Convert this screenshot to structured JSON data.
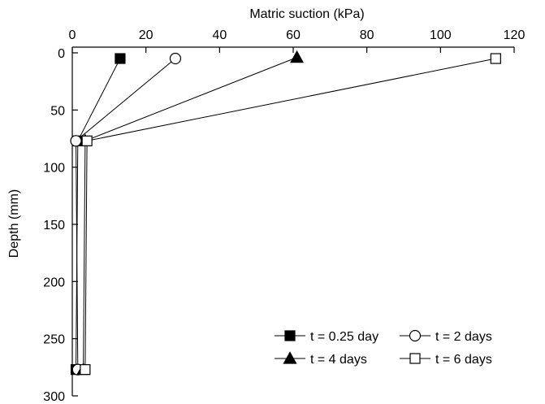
{
  "chart_data": {
    "type": "line",
    "xlabel": "Matric suction (kPa)",
    "ylabel": "Depth (mm)",
    "xaxis_position": "top",
    "yaxis_inverted": true,
    "xlim": [
      0,
      120
    ],
    "ylim": [
      0,
      300
    ],
    "x_ticks": [
      0,
      20,
      40,
      60,
      80,
      100,
      120
    ],
    "y_ticks": [
      0,
      50,
      100,
      150,
      200,
      250,
      300
    ],
    "grid": false,
    "legend_position": "bottom-right",
    "series": [
      {
        "name": "t = 0.25 day",
        "marker": "filled-square",
        "points": [
          {
            "x": 13,
            "y": 5
          },
          {
            "x": 1.5,
            "y": 77
          },
          {
            "x": 1,
            "y": 277
          }
        ]
      },
      {
        "name": "t = 2 days",
        "marker": "open-circle",
        "points": [
          {
            "x": 28,
            "y": 5
          },
          {
            "x": 1,
            "y": 77
          },
          {
            "x": 1.5,
            "y": 277
          }
        ]
      },
      {
        "name": "t = 4 days",
        "marker": "filled-triangle",
        "points": [
          {
            "x": 61,
            "y": 4
          },
          {
            "x": 3.5,
            "y": 77
          },
          {
            "x": 3,
            "y": 277
          }
        ]
      },
      {
        "name": "t = 6 days",
        "marker": "open-square",
        "points": [
          {
            "x": 115,
            "y": 5
          },
          {
            "x": 4,
            "y": 77
          },
          {
            "x": 3.5,
            "y": 277
          }
        ]
      }
    ]
  }
}
